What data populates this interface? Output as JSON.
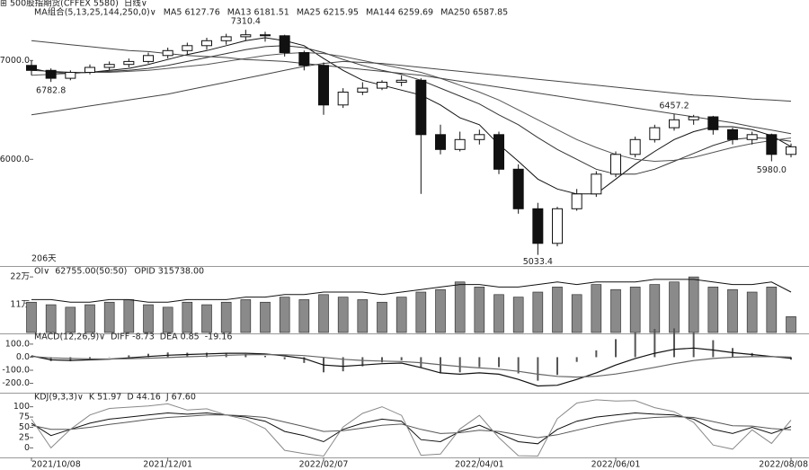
{
  "header": {
    "symbol": "500股指期货(CFFEX 5580)",
    "period": "日线∨"
  },
  "chart_data": [
    {
      "type": "candlestick",
      "title": "MA组合(5,13,25,144,250,0)∨",
      "up_color": "#ffffff",
      "down_color": "#111111",
      "ohlc": [
        [
          6950,
          7000,
          6850,
          6900
        ],
        [
          6900,
          6920,
          6782.8,
          6820
        ],
        [
          6820,
          6900,
          6800,
          6880
        ],
        [
          6880,
          6960,
          6860,
          6930
        ],
        [
          6930,
          6990,
          6900,
          6960
        ],
        [
          6960,
          7020,
          6930,
          6990
        ],
        [
          6990,
          7080,
          6970,
          7050
        ],
        [
          7050,
          7130,
          7020,
          7100
        ],
        [
          7100,
          7180,
          7060,
          7150
        ],
        [
          7150,
          7230,
          7110,
          7200
        ],
        [
          7200,
          7270,
          7160,
          7240
        ],
        [
          7240,
          7310.4,
          7200,
          7260
        ],
        [
          7260,
          7290,
          7190,
          7250
        ],
        [
          7250,
          7260,
          7040,
          7080
        ],
        [
          7080,
          7100,
          6900,
          6950
        ],
        [
          6950,
          6980,
          6450,
          6550
        ],
        [
          6550,
          6720,
          6520,
          6680
        ],
        [
          6680,
          6780,
          6650,
          6720
        ],
        [
          6720,
          6800,
          6700,
          6780
        ],
        [
          6780,
          6850,
          6740,
          6800
        ],
        [
          6800,
          6820,
          5650,
          6250
        ],
        [
          6250,
          6350,
          6050,
          6100
        ],
        [
          6100,
          6280,
          6080,
          6200
        ],
        [
          6200,
          6300,
          6150,
          6250
        ],
        [
          6250,
          6280,
          5850,
          5900
        ],
        [
          5900,
          5950,
          5450,
          5500
        ],
        [
          5500,
          5560,
          5033.4,
          5150
        ],
        [
          5150,
          5520,
          5120,
          5500
        ],
        [
          5500,
          5700,
          5480,
          5650
        ],
        [
          5650,
          5880,
          5620,
          5850
        ],
        [
          5850,
          6080,
          5820,
          6050
        ],
        [
          6050,
          6230,
          6020,
          6200
        ],
        [
          6200,
          6350,
          6170,
          6320
        ],
        [
          6320,
          6457.2,
          6290,
          6400
        ],
        [
          6400,
          6450,
          6350,
          6430
        ],
        [
          6430,
          6440,
          6250,
          6300
        ],
        [
          6300,
          6320,
          6150,
          6200
        ],
        [
          6200,
          6280,
          6150,
          6250
        ],
        [
          6250,
          6260,
          5980,
          6050
        ],
        [
          6050,
          6160,
          6020,
          6127
        ]
      ],
      "series": [
        {
          "name": "MA5",
          "color": "#111111",
          "values": [
            6920,
            6880,
            6870,
            6880,
            6900,
            6920,
            6960,
            7010,
            7060,
            7100,
            7150,
            7200,
            7230,
            7200,
            7150,
            7020,
            6900,
            6800,
            6750,
            6700,
            6650,
            6550,
            6420,
            6350,
            6150,
            5980,
            5800,
            5700,
            5650,
            5650,
            5800,
            5950,
            6080,
            6200,
            6280,
            6330,
            6330,
            6300,
            6240,
            6127.76
          ]
        },
        {
          "name": "MA13",
          "color": "#333333",
          "values": [
            6900,
            6890,
            6880,
            6880,
            6890,
            6900,
            6920,
            6950,
            6990,
            7030,
            7070,
            7110,
            7140,
            7150,
            7130,
            7080,
            7010,
            6950,
            6900,
            6860,
            6800,
            6720,
            6640,
            6560,
            6450,
            6350,
            6220,
            6100,
            6000,
            5900,
            5850,
            5850,
            5900,
            5980,
            6060,
            6140,
            6200,
            6220,
            6210,
            6181.51
          ]
        },
        {
          "name": "MA25",
          "color": "#555555",
          "values": [
            6850,
            6860,
            6870,
            6880,
            6880,
            6890,
            6900,
            6920,
            6940,
            6960,
            6990,
            7020,
            7050,
            7070,
            7080,
            7070,
            7040,
            7000,
            6960,
            6920,
            6880,
            6820,
            6750,
            6680,
            6600,
            6500,
            6400,
            6300,
            6200,
            6120,
            6050,
            6000,
            5980,
            5990,
            6020,
            6070,
            6120,
            6160,
            6190,
            6215.95
          ]
        },
        {
          "name": "MA144",
          "color": "#444444",
          "values": [
            7200,
            7180,
            7160,
            7140,
            7120,
            7100,
            7090,
            7070,
            7050,
            7040,
            7030,
            7010,
            7000,
            6990,
            6970,
            6950,
            6930,
            6910,
            6890,
            6870,
            6850,
            6820,
            6790,
            6760,
            6730,
            6700,
            6670,
            6640,
            6610,
            6580,
            6550,
            6520,
            6490,
            6460,
            6430,
            6400,
            6370,
            6330,
            6295,
            6259.69
          ]
        },
        {
          "name": "MA250",
          "color": "#444444",
          "values": [
            6450,
            6480,
            6510,
            6540,
            6570,
            6600,
            6630,
            6660,
            6700,
            6740,
            6780,
            6820,
            6860,
            6900,
            6940,
            6970,
            6990,
            6980,
            6970,
            6950,
            6930,
            6910,
            6890,
            6870,
            6850,
            6830,
            6810,
            6790,
            6770,
            6750,
            6730,
            6710,
            6690,
            6670,
            6650,
            6640,
            6625,
            6610,
            6600,
            6587.85
          ]
        }
      ],
      "ylim": [
        4930,
        7430
      ],
      "yticks": [
        {
          "value": 7000,
          "label": "7000.0"
        },
        {
          "value": 6000,
          "label": "6000.0"
        }
      ],
      "annotations": [
        "7310.4",
        "6782.8",
        "6457.2",
        "5980.0",
        "5033.4"
      ],
      "span_label": "206天"
    },
    {
      "type": "bar",
      "title": "OI∨",
      "readout": "62755.00(50:50)",
      "readout2": "OPID 315738.00",
      "color": "#8a8a8a",
      "line_color": "#111111",
      "values": [
        12,
        11,
        10,
        11,
        12,
        13,
        11,
        10,
        12,
        11,
        12,
        13,
        12,
        14,
        13,
        15,
        14,
        13,
        12,
        14,
        16,
        17,
        20,
        18,
        15,
        14,
        16,
        18,
        15,
        19,
        17,
        18,
        19,
        20,
        22,
        18,
        17,
        16,
        18,
        6.2755
      ],
      "line_values": [
        13,
        13,
        12,
        12,
        13,
        13,
        12,
        12,
        13,
        13,
        13,
        14,
        14,
        15,
        15,
        16,
        16,
        16,
        15,
        16,
        17,
        18,
        19,
        19,
        18,
        18,
        19,
        20,
        19,
        20,
        20,
        20,
        21,
        21,
        21,
        20,
        19,
        19,
        20,
        16
      ],
      "ylim": [
        0,
        25.6
      ],
      "yticks": [
        {
          "value": 22,
          "label": "22万"
        },
        {
          "value": 11,
          "label": "11万"
        }
      ]
    },
    {
      "type": "macd",
      "title": "MACD(12,26,9)∨",
      "color": "#555555",
      "series": [
        {
          "name": "DIFF",
          "color": "#111111",
          "values": [
            10,
            -20,
            -25,
            -20,
            -15,
            -5,
            5,
            15,
            20,
            25,
            30,
            30,
            25,
            10,
            -10,
            -60,
            -70,
            -60,
            -50,
            -45,
            -80,
            -120,
            -130,
            -120,
            -130,
            -170,
            -220,
            -215,
            -170,
            -120,
            -60,
            -10,
            30,
            60,
            70,
            55,
            35,
            20,
            5,
            -8.73
          ]
        },
        {
          "name": "DEA",
          "color": "#666666",
          "values": [
            5,
            -5,
            -10,
            -13,
            -14,
            -12,
            -8,
            -3,
            3,
            8,
            14,
            18,
            20,
            18,
            12,
            -2,
            -16,
            -25,
            -30,
            -33,
            -42,
            -58,
            -72,
            -82,
            -92,
            -108,
            -130,
            -147,
            -152,
            -146,
            -129,
            -105,
            -78,
            -50,
            -26,
            -10,
            0,
            4,
            4,
            0.85
          ]
        }
      ],
      "histogram": [
        10,
        -30,
        -30,
        -14,
        -2,
        14,
        26,
        36,
        34,
        34,
        32,
        24,
        10,
        -16,
        -44,
        -116,
        -108,
        -70,
        -40,
        -24,
        -76,
        -124,
        -116,
        -76,
        -76,
        -124,
        -180,
        -136,
        -36,
        52,
        138,
        190,
        216,
        220,
        192,
        130,
        70,
        32,
        2,
        -19.16
      ],
      "ylim": [
        -265,
        175
      ],
      "yticks": [
        {
          "value": 100,
          "label": "100.0"
        },
        {
          "value": 0,
          "label": "0.0"
        },
        {
          "value": -100,
          "label": "-100.0"
        },
        {
          "value": -200,
          "label": "-200.0"
        }
      ]
    },
    {
      "type": "line",
      "title": "KDJ(9,3,3)∨",
      "categories": [
        "2021/10/08",
        null,
        null,
        null,
        null,
        null,
        null,
        "2021/12/01",
        null,
        null,
        null,
        null,
        null,
        null,
        null,
        "2022/02/07",
        null,
        null,
        null,
        null,
        null,
        null,
        null,
        "2022/04/01",
        null,
        null,
        null,
        null,
        null,
        null,
        "2022/06/01",
        null,
        null,
        null,
        null,
        null,
        null,
        null,
        null,
        "2022/08/08"
      ],
      "series": [
        {
          "name": "K",
          "color": "#111111",
          "values": [
            60,
            30,
            45,
            60,
            70,
            75,
            80,
            85,
            82,
            85,
            80,
            75,
            65,
            40,
            30,
            15,
            45,
            60,
            70,
            65,
            20,
            15,
            40,
            55,
            35,
            15,
            10,
            45,
            65,
            75,
            80,
            85,
            82,
            80,
            70,
            45,
            35,
            50,
            35,
            51.97
          ]
        },
        {
          "name": "D",
          "color": "#555555",
          "values": [
            55,
            45,
            45,
            50,
            57,
            63,
            69,
            74,
            77,
            80,
            80,
            78,
            74,
            63,
            52,
            40,
            42,
            48,
            55,
            58,
            45,
            35,
            37,
            43,
            40,
            32,
            25,
            32,
            43,
            54,
            63,
            70,
            74,
            76,
            74,
            64,
            54,
            53,
            47,
            44.16
          ]
        },
        {
          "name": "J",
          "color": "#888888",
          "values": [
            70,
            0,
            45,
            80,
            96,
            99,
            102,
            107,
            92,
            95,
            80,
            69,
            47,
            -6,
            -14,
            -20,
            51,
            84,
            100,
            79,
            -18,
            -15,
            46,
            79,
            25,
            -19,
            -20,
            71,
            109,
            117,
            114,
            115,
            98,
            88,
            62,
            7,
            -3,
            44,
            11,
            67.6
          ],
          "value_labels": [
            null,
            null,
            null,
            null,
            null,
            null,
            null,
            null,
            null,
            null,
            null,
            null,
            null,
            null,
            null,
            null,
            null,
            null,
            null,
            null,
            null,
            null,
            null,
            null,
            null,
            null,
            null,
            null,
            null,
            null,
            null,
            null,
            null,
            null,
            null,
            null,
            null,
            null,
            null,
            "67.60"
          ]
        }
      ],
      "ylim": [
        -21,
        132
      ],
      "yticks": [
        100,
        75,
        50,
        25,
        0
      ]
    }
  ]
}
